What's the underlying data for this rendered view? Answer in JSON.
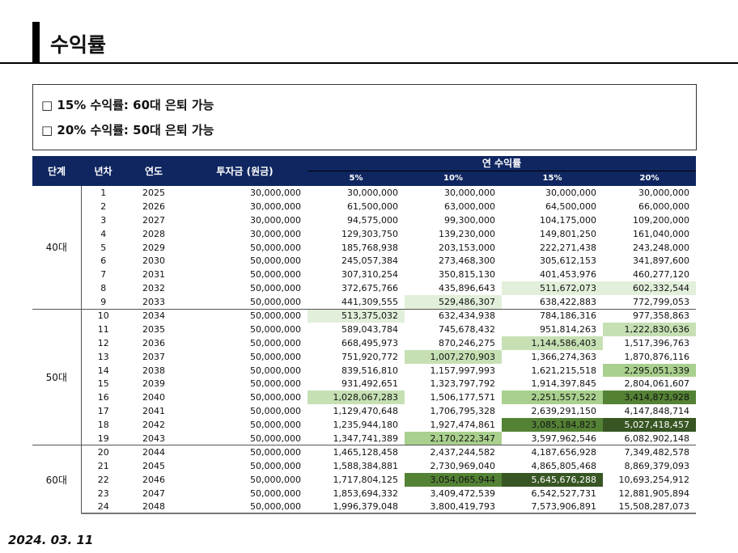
{
  "title": "수익률",
  "notes": [
    "□ 15% 수익률: 60대 은퇴 가능",
    "□ 20% 수익률: 50대 은퇴 가능"
  ],
  "table": {
    "headers": {
      "stage": "단계",
      "year_no": "년차",
      "year": "연도",
      "invest": "투자금 (원금)",
      "rate_group": "연 수익률",
      "rates": [
        "5%",
        "10%",
        "15%",
        "20%"
      ]
    },
    "groups": [
      {
        "stage": "40대",
        "rows": [
          {
            "n": "1",
            "y": "2025",
            "inv": "30,000,000",
            "v": [
              "30,000,000",
              "30,000,000",
              "30,000,000",
              "30,000,000"
            ],
            "hl": [
              0,
              0,
              0,
              0
            ]
          },
          {
            "n": "2",
            "y": "2026",
            "inv": "30,000,000",
            "v": [
              "61,500,000",
              "63,000,000",
              "64,500,000",
              "66,000,000"
            ],
            "hl": [
              0,
              0,
              0,
              0
            ]
          },
          {
            "n": "3",
            "y": "2027",
            "inv": "30,000,000",
            "v": [
              "94,575,000",
              "99,300,000",
              "104,175,000",
              "109,200,000"
            ],
            "hl": [
              0,
              0,
              0,
              0
            ]
          },
          {
            "n": "4",
            "y": "2028",
            "inv": "30,000,000",
            "v": [
              "129,303,750",
              "139,230,000",
              "149,801,250",
              "161,040,000"
            ],
            "hl": [
              0,
              0,
              0,
              0
            ]
          },
          {
            "n": "5",
            "y": "2029",
            "inv": "50,000,000",
            "v": [
              "185,768,938",
              "203,153,000",
              "222,271,438",
              "243,248,000"
            ],
            "hl": [
              0,
              0,
              0,
              0
            ]
          },
          {
            "n": "6",
            "y": "2030",
            "inv": "50,000,000",
            "v": [
              "245,057,384",
              "273,468,300",
              "305,612,153",
              "341,897,600"
            ],
            "hl": [
              0,
              0,
              0,
              0
            ]
          },
          {
            "n": "7",
            "y": "2031",
            "inv": "50,000,000",
            "v": [
              "307,310,254",
              "350,815,130",
              "401,453,976",
              "460,277,120"
            ],
            "hl": [
              0,
              0,
              0,
              0
            ]
          },
          {
            "n": "8",
            "y": "2032",
            "inv": "50,000,000",
            "v": [
              "372,675,766",
              "435,896,643",
              "511,672,073",
              "602,332,544"
            ],
            "hl": [
              0,
              0,
              1,
              1
            ]
          },
          {
            "n": "9",
            "y": "2033",
            "inv": "50,000,000",
            "v": [
              "441,309,555",
              "529,486,307",
              "638,422,883",
              "772,799,053"
            ],
            "hl": [
              0,
              1,
              0,
              0
            ]
          }
        ]
      },
      {
        "stage": "50대",
        "rows": [
          {
            "n": "10",
            "y": "2034",
            "inv": "50,000,000",
            "v": [
              "513,375,032",
              "632,434,938",
              "784,186,316",
              "977,358,863"
            ],
            "hl": [
              1,
              0,
              0,
              0
            ]
          },
          {
            "n": "11",
            "y": "2035",
            "inv": "50,000,000",
            "v": [
              "589,043,784",
              "745,678,432",
              "951,814,263",
              "1,222,830,636"
            ],
            "hl": [
              0,
              0,
              0,
              2
            ]
          },
          {
            "n": "12",
            "y": "2036",
            "inv": "50,000,000",
            "v": [
              "668,495,973",
              "870,246,275",
              "1,144,586,403",
              "1,517,396,763"
            ],
            "hl": [
              0,
              0,
              2,
              0
            ]
          },
          {
            "n": "13",
            "y": "2037",
            "inv": "50,000,000",
            "v": [
              "751,920,772",
              "1,007,270,903",
              "1,366,274,363",
              "1,870,876,116"
            ],
            "hl": [
              0,
              2,
              0,
              0
            ]
          },
          {
            "n": "14",
            "y": "2038",
            "inv": "50,000,000",
            "v": [
              "839,516,810",
              "1,157,997,993",
              "1,621,215,518",
              "2,295,051,339"
            ],
            "hl": [
              0,
              0,
              0,
              3
            ]
          },
          {
            "n": "15",
            "y": "2039",
            "inv": "50,000,000",
            "v": [
              "931,492,651",
              "1,323,797,792",
              "1,914,397,845",
              "2,804,061,607"
            ],
            "hl": [
              0,
              0,
              0,
              0
            ]
          },
          {
            "n": "16",
            "y": "2040",
            "inv": "50,000,000",
            "v": [
              "1,028,067,283",
              "1,506,177,571",
              "2,251,557,522",
              "3,414,873,928"
            ],
            "hl": [
              2,
              0,
              3,
              4
            ]
          },
          {
            "n": "17",
            "y": "2041",
            "inv": "50,000,000",
            "v": [
              "1,129,470,648",
              "1,706,795,328",
              "2,639,291,150",
              "4,147,848,714"
            ],
            "hl": [
              0,
              0,
              0,
              0
            ]
          },
          {
            "n": "18",
            "y": "2042",
            "inv": "50,000,000",
            "v": [
              "1,235,944,180",
              "1,927,474,861",
              "3,085,184,823",
              "5,027,418,457"
            ],
            "hl": [
              0,
              0,
              4,
              5
            ]
          },
          {
            "n": "19",
            "y": "2043",
            "inv": "50,000,000",
            "v": [
              "1,347,741,389",
              "2,170,222,347",
              "3,597,962,546",
              "6,082,902,148"
            ],
            "hl": [
              0,
              3,
              0,
              0
            ]
          }
        ]
      },
      {
        "stage": "60대",
        "rows": [
          {
            "n": "20",
            "y": "2044",
            "inv": "50,000,000",
            "v": [
              "1,465,128,458",
              "2,437,244,582",
              "4,187,656,928",
              "7,349,482,578"
            ],
            "hl": [
              0,
              0,
              0,
              0
            ]
          },
          {
            "n": "21",
            "y": "2045",
            "inv": "50,000,000",
            "v": [
              "1,588,384,881",
              "2,730,969,040",
              "4,865,805,468",
              "8,869,379,093"
            ],
            "hl": [
              0,
              0,
              0,
              0
            ]
          },
          {
            "n": "22",
            "y": "2046",
            "inv": "50,000,000",
            "v": [
              "1,717,804,125",
              "3,054,065,944",
              "5,645,676,288",
              "10,693,254,912"
            ],
            "hl": [
              0,
              4,
              5,
              0
            ]
          },
          {
            "n": "23",
            "y": "2047",
            "inv": "50,000,000",
            "v": [
              "1,853,694,332",
              "3,409,472,539",
              "6,542,527,731",
              "12,881,905,894"
            ],
            "hl": [
              0,
              0,
              0,
              0
            ]
          },
          {
            "n": "24",
            "y": "2048",
            "inv": "50,000,000",
            "v": [
              "1,996,379,048",
              "3,800,419,793",
              "7,573,906,891",
              "15,508,287,073"
            ],
            "hl": [
              0,
              0,
              0,
              0
            ]
          }
        ]
      }
    ]
  },
  "colors": {
    "header": "#0f2660",
    "hl1": "#e2efda",
    "hl2": "#c6e0b4",
    "hl3": "#a9d08e",
    "hl4": "#548235",
    "hl5": "#375623"
  },
  "date": "2024. 03. 11"
}
